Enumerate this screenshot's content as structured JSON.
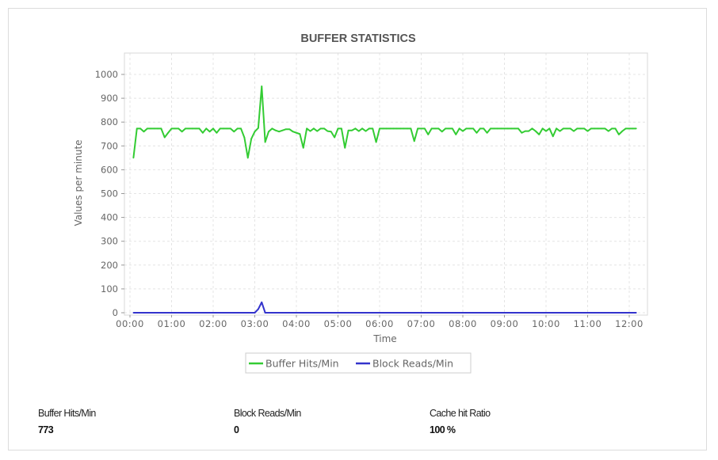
{
  "chart_data": {
    "type": "line",
    "title": "BUFFER STATISTICS",
    "xlabel": "Time",
    "ylabel": "Values per minute",
    "ylim": [
      0,
      1000
    ],
    "yticks": [
      "0",
      "100",
      "200",
      "300",
      "400",
      "500",
      "600",
      "700",
      "800",
      "900",
      "1000"
    ],
    "xticks": [
      "00:00",
      "01:00",
      "02:00",
      "03:00",
      "04:00",
      "05:00",
      "06:00",
      "07:00",
      "08:00",
      "09:00",
      "10:00",
      "11:00",
      "12:00"
    ],
    "x_start": "00:05",
    "x_interval_minutes": 5,
    "grid": true,
    "legend_placement": "bottom",
    "series": [
      {
        "name": "Buffer Hits/Min",
        "color": "#33cc33",
        "values": [
          650,
          773,
          773,
          760,
          773,
          773,
          773,
          773,
          773,
          736,
          755,
          773,
          773,
          773,
          760,
          773,
          773,
          773,
          773,
          773,
          755,
          773,
          760,
          773,
          755,
          773,
          773,
          773,
          773,
          760,
          773,
          773,
          735,
          650,
          730,
          760,
          775,
          950,
          716,
          760,
          773,
          765,
          760,
          765,
          770,
          770,
          760,
          755,
          750,
          692,
          773,
          762,
          773,
          762,
          773,
          773,
          762,
          760,
          736,
          773,
          773,
          692,
          765,
          765,
          773,
          762,
          773,
          762,
          773,
          773,
          716,
          773,
          773,
          773,
          773,
          773,
          773,
          773,
          773,
          773,
          773,
          720,
          773,
          773,
          773,
          748,
          773,
          773,
          773,
          760,
          773,
          773,
          773,
          748,
          773,
          762,
          773,
          773,
          773,
          755,
          773,
          773,
          755,
          773,
          773,
          773,
          773,
          773,
          773,
          773,
          773,
          773,
          755,
          762,
          762,
          773,
          762,
          748,
          773,
          762,
          773,
          740,
          773,
          762,
          773,
          773,
          773,
          762,
          773,
          773,
          773,
          762,
          773,
          773,
          773,
          773,
          773,
          762,
          773,
          773,
          748,
          762,
          773,
          773,
          773,
          773
        ]
      },
      {
        "name": "Block Reads/Min",
        "color": "#3333cc",
        "values": [
          0,
          0,
          0,
          0,
          0,
          0,
          0,
          0,
          0,
          0,
          0,
          0,
          0,
          0,
          0,
          0,
          0,
          0,
          0,
          0,
          0,
          0,
          0,
          0,
          0,
          0,
          0,
          0,
          0,
          0,
          0,
          0,
          0,
          0,
          0,
          0,
          15,
          44,
          0,
          0,
          0,
          0,
          0,
          0,
          0,
          0,
          0,
          0,
          0,
          0,
          0,
          0,
          0,
          0,
          0,
          0,
          0,
          0,
          0,
          0,
          0,
          0,
          0,
          0,
          0,
          0,
          0,
          0,
          0,
          0,
          0,
          0,
          0,
          0,
          0,
          0,
          0,
          0,
          0,
          0,
          0,
          0,
          0,
          0,
          0,
          0,
          0,
          0,
          0,
          0,
          0,
          0,
          0,
          0,
          0,
          0,
          0,
          0,
          0,
          0,
          0,
          0,
          0,
          0,
          0,
          0,
          0,
          0,
          0,
          0,
          0,
          0,
          0,
          0,
          0,
          0,
          0,
          0,
          0,
          0,
          0,
          0,
          0,
          0,
          0,
          0,
          0,
          0,
          0,
          0,
          0,
          0,
          0,
          0,
          0,
          0,
          0,
          0,
          0,
          0,
          0,
          0,
          0,
          0,
          0,
          0
        ]
      }
    ]
  },
  "stats": [
    {
      "label": "Buffer Hits/Min",
      "value": "773"
    },
    {
      "label": "Block Reads/Min",
      "value": "0"
    },
    {
      "label": "Cache hit Ratio",
      "value": "100 %"
    }
  ]
}
